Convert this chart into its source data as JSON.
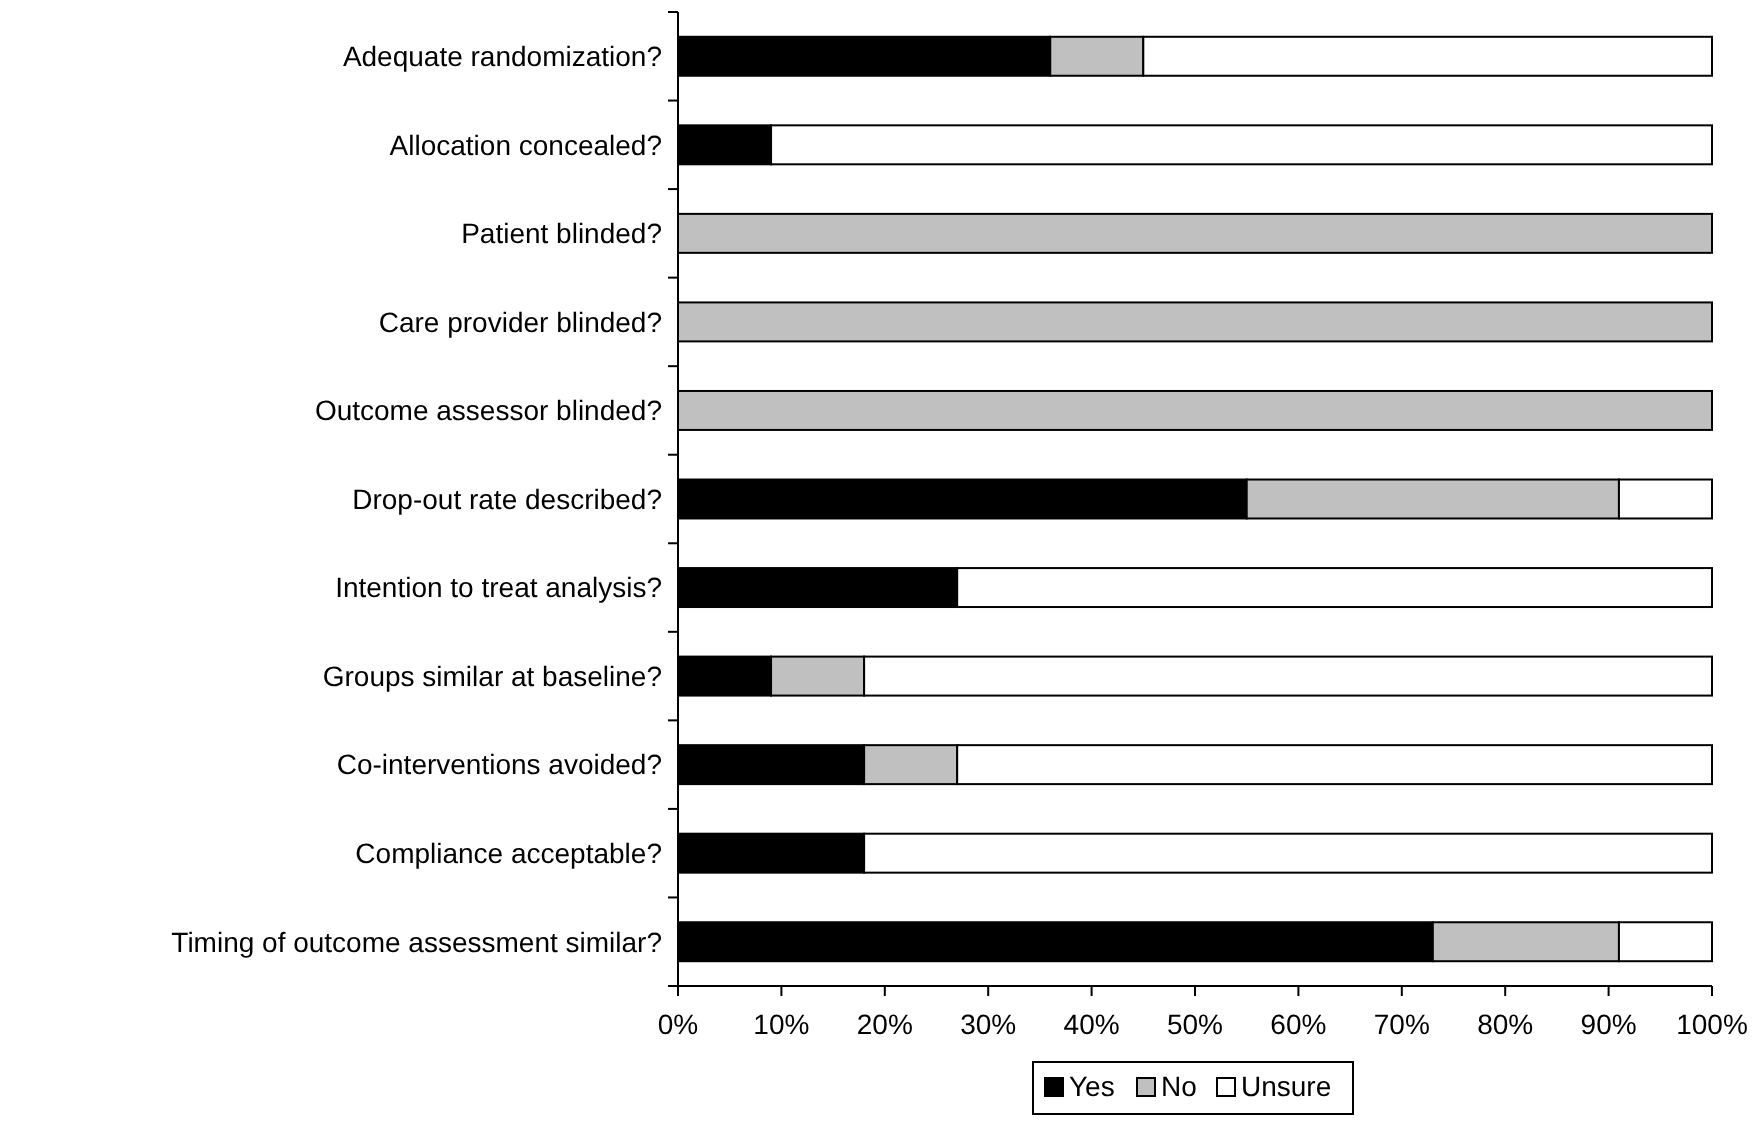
{
  "chart_data": {
    "type": "bar",
    "orientation": "horizontal",
    "stacked": true,
    "categories": [
      "Adequate randomization?",
      "Allocation concealed?",
      "Patient blinded?",
      "Care provider blinded?",
      "Outcome assessor blinded?",
      "Drop-out rate described?",
      "Intention to treat analysis?",
      "Groups similar at baseline?",
      "Co-interventions avoided?",
      "Compliance acceptable?",
      "Timing of outcome assessment similar?"
    ],
    "series": [
      {
        "name": "Yes",
        "color": "#000000",
        "values": [
          36,
          9,
          0,
          0,
          0,
          55,
          27,
          9,
          18,
          18,
          73
        ]
      },
      {
        "name": "No",
        "color": "#c0c0c0",
        "values": [
          9,
          0,
          100,
          100,
          100,
          36,
          0,
          9,
          9,
          0,
          18
        ]
      },
      {
        "name": "Unsure",
        "color": "#ffffff",
        "values": [
          55,
          91,
          0,
          0,
          0,
          9,
          73,
          82,
          73,
          82,
          9
        ]
      }
    ],
    "xlim": [
      0,
      100
    ],
    "xticks": [
      {
        "value": 0,
        "label": "0%"
      },
      {
        "value": 10,
        "label": "10%"
      },
      {
        "value": 20,
        "label": "20%"
      },
      {
        "value": 30,
        "label": "30%"
      },
      {
        "value": 40,
        "label": "40%"
      },
      {
        "value": 50,
        "label": "50%"
      },
      {
        "value": 60,
        "label": "60%"
      },
      {
        "value": 70,
        "label": "70%"
      },
      {
        "value": 80,
        "label": "80%"
      },
      {
        "value": 90,
        "label": "90%"
      },
      {
        "value": 100,
        "label": "100%"
      }
    ],
    "grid": false,
    "legend": "bottom"
  }
}
